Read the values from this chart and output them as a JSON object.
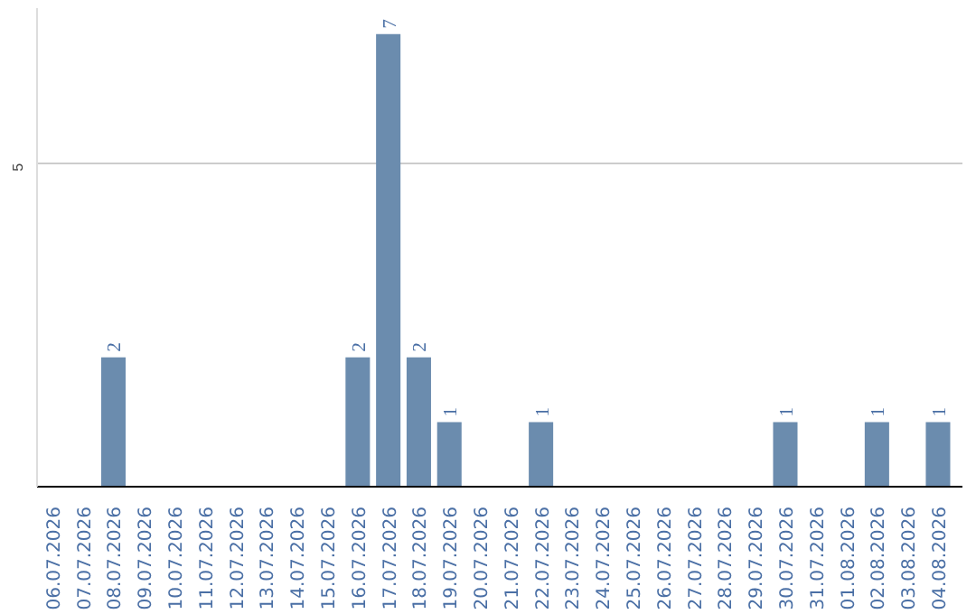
{
  "chart_data": {
    "type": "bar",
    "categories": [
      "06.07.2026",
      "07.07.2026",
      "08.07.2026",
      "09.07.2026",
      "10.07.2026",
      "11.07.2026",
      "12.07.2026",
      "13.07.2026",
      "14.07.2026",
      "15.07.2026",
      "16.07.2026",
      "17.07.2026",
      "18.07.2026",
      "19.07.2026",
      "20.07.2026",
      "21.07.2026",
      "22.07.2026",
      "23.07.2026",
      "24.07.2026",
      "25.07.2026",
      "26.07.2026",
      "27.07.2026",
      "28.07.2026",
      "29.07.2026",
      "30.07.2026",
      "31.07.2026",
      "01.08.2026",
      "02.08.2026",
      "03.08.2026",
      "04.08.2026"
    ],
    "values": [
      0,
      0,
      2,
      0,
      0,
      0,
      0,
      0,
      0,
      0,
      2,
      7,
      2,
      1,
      0,
      0,
      1,
      0,
      0,
      0,
      0,
      0,
      0,
      0,
      1,
      0,
      0,
      1,
      0,
      1
    ],
    "value_labels": [
      null,
      null,
      "2",
      null,
      null,
      null,
      null,
      null,
      null,
      null,
      "2",
      "7",
      "2",
      "1",
      null,
      null,
      "1",
      null,
      null,
      null,
      null,
      null,
      null,
      null,
      "1",
      null,
      null,
      "1",
      null,
      "1"
    ],
    "color": "#6b8cae",
    "ylim": [
      0,
      7.4
    ],
    "yticks": [
      5
    ],
    "grid": "y"
  }
}
